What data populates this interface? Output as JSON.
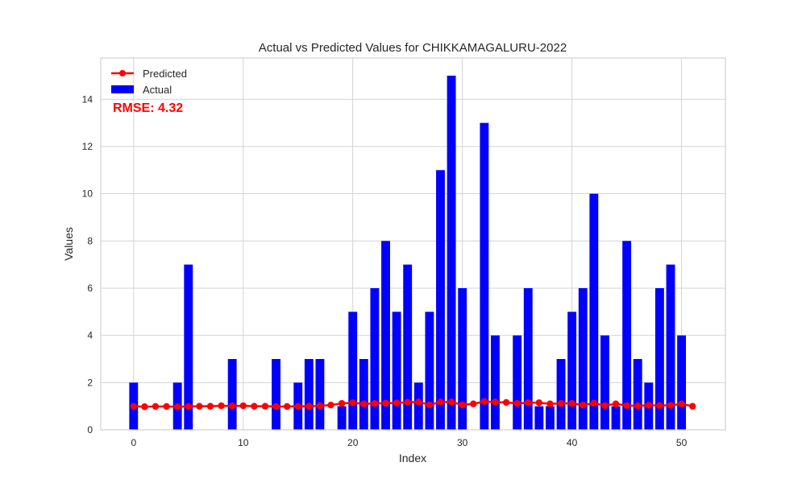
{
  "chart_data": {
    "type": "bar",
    "title": "Actual vs Predicted Values for CHIKKAMAGALURU-2022",
    "xlabel": "Index",
    "ylabel": "Values",
    "xlim": [
      -3,
      54
    ],
    "ylim": [
      0,
      15.75
    ],
    "x_ticks": [
      0,
      10,
      20,
      30,
      40,
      50
    ],
    "y_ticks": [
      0,
      2,
      4,
      6,
      8,
      10,
      12,
      14
    ],
    "grid": true,
    "legend_placement": "top-left",
    "annotation": "RMSE: 4.32",
    "series": [
      {
        "name": "Actual",
        "kind": "bar",
        "color": "#0000ff",
        "x": [
          0,
          1,
          2,
          3,
          4,
          5,
          6,
          7,
          8,
          9,
          10,
          11,
          12,
          13,
          14,
          15,
          16,
          17,
          18,
          19,
          20,
          21,
          22,
          23,
          24,
          25,
          26,
          27,
          28,
          29,
          30,
          31,
          32,
          33,
          34,
          35,
          36,
          37,
          38,
          39,
          40,
          41,
          42,
          43,
          44,
          45,
          46,
          47,
          48,
          49,
          50,
          51
        ],
        "values": [
          2,
          0,
          0,
          0,
          2,
          7,
          0,
          0,
          0,
          3,
          0,
          0,
          0,
          3,
          0,
          2,
          3,
          3,
          0,
          1,
          5,
          3,
          6,
          8,
          5,
          7,
          2,
          5,
          11,
          15,
          6,
          0,
          13,
          4,
          0,
          4,
          6,
          1,
          1,
          3,
          5,
          6,
          10,
          4,
          1,
          8,
          3,
          2,
          6,
          7,
          4,
          0
        ]
      },
      {
        "name": "Predicted",
        "kind": "line",
        "color": "#ff0000",
        "x": [
          0,
          1,
          2,
          3,
          4,
          5,
          6,
          7,
          8,
          9,
          10,
          11,
          12,
          13,
          14,
          15,
          16,
          17,
          18,
          19,
          20,
          21,
          22,
          23,
          24,
          25,
          26,
          27,
          28,
          29,
          30,
          31,
          32,
          33,
          34,
          35,
          36,
          37,
          38,
          39,
          40,
          41,
          42,
          43,
          44,
          45,
          46,
          47,
          48,
          49,
          50,
          51
        ],
        "values": [
          1.0,
          0.98,
          0.99,
          0.99,
          0.98,
          0.99,
          1.0,
          1.0,
          1.02,
          1.01,
          1.02,
          1.0,
          1.0,
          0.99,
          0.99,
          1.0,
          1.0,
          1.02,
          1.05,
          1.12,
          1.15,
          1.1,
          1.12,
          1.13,
          1.14,
          1.17,
          1.18,
          1.06,
          1.18,
          1.18,
          1.06,
          1.1,
          1.2,
          1.18,
          1.16,
          1.12,
          1.15,
          1.15,
          1.1,
          1.12,
          1.12,
          1.05,
          1.13,
          1.03,
          1.1,
          1.03,
          1.02,
          1.04,
          1.03,
          1.04,
          1.1,
          1.0
        ]
      }
    ]
  },
  "legend": {
    "items": [
      {
        "label": "Predicted",
        "color": "#ff0000",
        "marker": "line-dot"
      },
      {
        "label": "Actual",
        "color": "#0000ff",
        "marker": "bar"
      }
    ]
  },
  "annotation_color": "#ff0000"
}
